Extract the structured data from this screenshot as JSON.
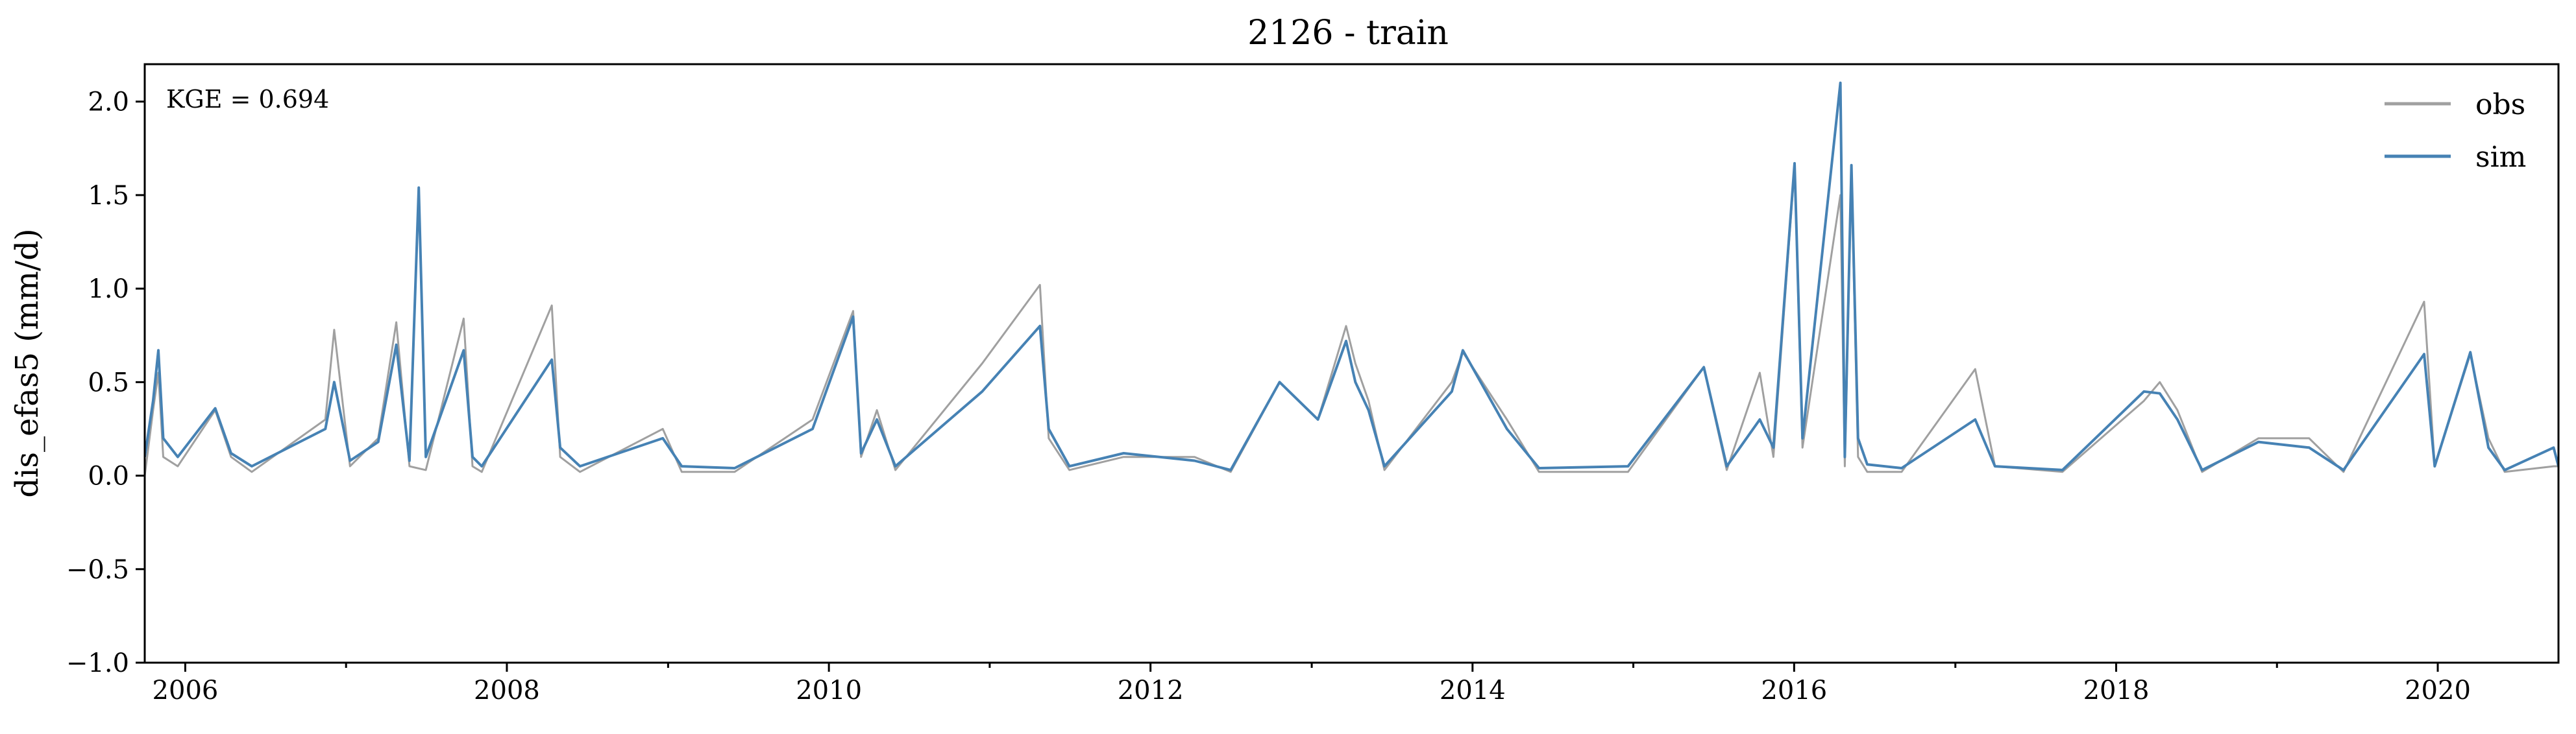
{
  "chart_data": {
    "type": "line",
    "title": "2126 - train",
    "xlabel": "",
    "ylabel": "dis_efas5 (mm/d)",
    "annotation": "KGE = 0.694",
    "xlim": [
      "2005-10-01",
      "2020-10-01"
    ],
    "ylim": [
      -1.0,
      2.2
    ],
    "x_ticks": [
      "2006",
      "2008",
      "2010",
      "2012",
      "2014",
      "2016",
      "2018",
      "2020"
    ],
    "y_ticks": [
      "−1.0",
      "−0.5",
      "0.0",
      "0.5",
      "1.0",
      "1.5",
      "2.0"
    ],
    "grid": false,
    "legend_position": "top-right",
    "series": [
      {
        "name": "obs",
        "color": "#a0a0a0",
        "x": [
          "2005-10-01",
          "2005-10-20",
          "2005-11-01",
          "2005-11-12",
          "2005-12-15",
          "2006-03-10",
          "2006-04-15",
          "2006-06-01",
          "2006-11-15",
          "2006-12-05",
          "2007-01-10",
          "2007-03-15",
          "2007-04-25",
          "2007-05-25",
          "2007-07-01",
          "2007-09-25",
          "2007-10-15",
          "2007-11-05",
          "2008-04-12",
          "2008-05-01",
          "2008-06-15",
          "2008-12-20",
          "2009-02-01",
          "2009-06-01",
          "2009-11-25",
          "2010-02-25",
          "2010-03-15",
          "2010-04-20",
          "2010-06-01",
          "2010-12-15",
          "2011-04-25",
          "2011-05-15",
          "2011-07-01",
          "2011-11-01",
          "2012-04-10",
          "2012-07-01",
          "2012-10-20",
          "2013-01-15",
          "2013-03-20",
          "2013-04-10",
          "2013-05-10",
          "2013-06-15",
          "2013-11-15",
          "2013-12-10",
          "2014-03-20",
          "2014-06-01",
          "2014-12-20",
          "2015-06-10",
          "2015-08-01",
          "2015-10-15",
          "2015-11-15",
          "2016-01-02",
          "2016-01-20",
          "2016-04-15",
          "2016-04-25",
          "2016-05-10",
          "2016-05-25",
          "2016-06-15",
          "2016-09-01",
          "2017-02-15",
          "2017-04-01",
          "2017-09-01",
          "2018-03-05",
          "2018-04-10",
          "2018-05-20",
          "2018-07-15",
          "2018-11-20",
          "2019-03-15",
          "2019-06-01",
          "2019-12-01",
          "2019-12-25",
          "2020-03-15",
          "2020-04-25",
          "2020-06-01",
          "2020-09-20",
          "2020-10-01"
        ],
        "values": [
          0.0,
          0.35,
          0.55,
          0.1,
          0.05,
          0.35,
          0.1,
          0.02,
          0.3,
          0.78,
          0.05,
          0.2,
          0.82,
          0.05,
          0.03,
          0.84,
          0.05,
          0.02,
          0.91,
          0.1,
          0.02,
          0.25,
          0.02,
          0.02,
          0.3,
          0.88,
          0.1,
          0.35,
          0.03,
          0.6,
          1.02,
          0.2,
          0.03,
          0.1,
          0.1,
          0.02,
          0.5,
          0.3,
          0.8,
          0.6,
          0.4,
          0.03,
          0.5,
          0.66,
          0.3,
          0.02,
          0.02,
          0.58,
          0.03,
          0.55,
          0.1,
          1.65,
          0.15,
          1.5,
          0.05,
          1.6,
          0.1,
          0.02,
          0.02,
          0.57,
          0.05,
          0.02,
          0.4,
          0.5,
          0.35,
          0.02,
          0.2,
          0.2,
          0.02,
          0.93,
          0.05,
          0.65,
          0.2,
          0.02,
          0.05,
          0.05
        ]
      },
      {
        "name": "sim",
        "color": "#4682b4",
        "x": [
          "2005-10-01",
          "2005-10-20",
          "2005-11-01",
          "2005-11-12",
          "2005-12-15",
          "2006-03-10",
          "2006-04-15",
          "2006-06-01",
          "2006-11-15",
          "2006-12-05",
          "2007-01-10",
          "2007-03-15",
          "2007-04-25",
          "2007-05-25",
          "2007-06-15",
          "2007-07-01",
          "2007-09-25",
          "2007-10-15",
          "2007-11-05",
          "2008-04-12",
          "2008-05-01",
          "2008-06-15",
          "2008-12-20",
          "2009-02-01",
          "2009-06-01",
          "2009-11-25",
          "2010-02-25",
          "2010-03-15",
          "2010-04-20",
          "2010-06-01",
          "2010-12-15",
          "2011-04-25",
          "2011-05-15",
          "2011-07-01",
          "2011-11-01",
          "2012-04-10",
          "2012-07-01",
          "2012-10-20",
          "2013-01-15",
          "2013-03-20",
          "2013-04-10",
          "2013-05-10",
          "2013-06-15",
          "2013-11-15",
          "2013-12-10",
          "2014-03-20",
          "2014-06-01",
          "2014-12-20",
          "2015-06-10",
          "2015-08-01",
          "2015-10-15",
          "2015-11-15",
          "2016-01-02",
          "2016-01-20",
          "2016-04-15",
          "2016-04-25",
          "2016-05-10",
          "2016-05-25",
          "2016-06-15",
          "2016-09-01",
          "2017-02-15",
          "2017-04-01",
          "2017-09-01",
          "2018-03-05",
          "2018-04-10",
          "2018-05-20",
          "2018-07-15",
          "2018-11-20",
          "2019-03-15",
          "2019-06-01",
          "2019-12-01",
          "2019-12-25",
          "2020-03-15",
          "2020-04-25",
          "2020-06-01",
          "2020-09-20",
          "2020-10-01"
        ],
        "values": [
          0.1,
          0.4,
          0.67,
          0.2,
          0.1,
          0.36,
          0.12,
          0.05,
          0.25,
          0.5,
          0.08,
          0.18,
          0.7,
          0.08,
          1.54,
          0.1,
          0.67,
          0.1,
          0.05,
          0.62,
          0.15,
          0.05,
          0.2,
          0.05,
          0.04,
          0.25,
          0.85,
          0.12,
          0.3,
          0.05,
          0.45,
          0.8,
          0.25,
          0.05,
          0.12,
          0.08,
          0.03,
          0.5,
          0.3,
          0.72,
          0.5,
          0.35,
          0.05,
          0.45,
          0.67,
          0.25,
          0.04,
          0.05,
          0.58,
          0.05,
          0.3,
          0.15,
          1.67,
          0.2,
          2.1,
          0.1,
          1.66,
          0.2,
          0.06,
          0.04,
          0.3,
          0.05,
          0.03,
          0.45,
          0.44,
          0.3,
          0.03,
          0.18,
          0.15,
          0.03,
          0.65,
          0.05,
          0.66,
          0.15,
          0.03,
          0.15,
          0.05
        ]
      }
    ]
  }
}
